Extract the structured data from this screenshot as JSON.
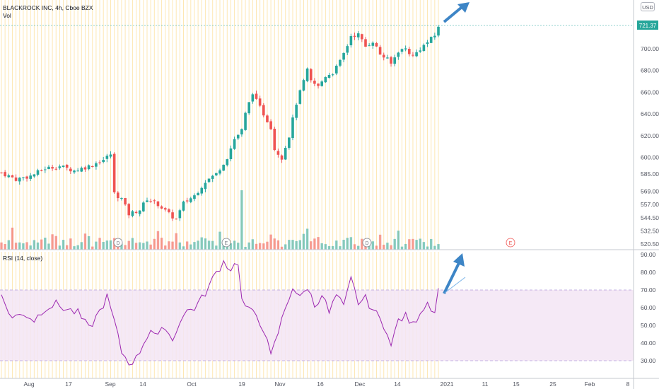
{
  "header": {
    "symbol": "BLACKROCK INC, 4h, Cboe BZX",
    "volume_label": "Vol",
    "currency": "USD",
    "last_price": "721.37"
  },
  "rsi_panel": {
    "label": "RSI (14, close)"
  },
  "colors": {
    "up": "#26a69a",
    "down": "#ef5350",
    "rsi_line": "#9c27b0",
    "rsi_band": "#f3e5f5",
    "arrow": "#3d85c6",
    "grid_vertical": "#fde7b3"
  },
  "chart_data": [
    {
      "type": "candlestick",
      "panel": "price",
      "yticks": [
        "700.00",
        "680.00",
        "660.00",
        "640.00",
        "620.00",
        "600.00",
        "585.00",
        "569.00",
        "557.00",
        "544.50",
        "532.50",
        "520.50"
      ],
      "x_ticks": [
        "Aug",
        "17",
        "Sep",
        "14",
        "Oct",
        "19",
        "Nov",
        "16",
        "Dec",
        "14",
        "2021",
        "11",
        "15",
        "25",
        "Feb",
        "8"
      ],
      "events": [
        "D",
        "E",
        "D",
        "E"
      ],
      "anchors": [
        [
          0,
          586
        ],
        [
          4,
          580
        ],
        [
          8,
          583
        ],
        [
          12,
          590
        ],
        [
          16,
          592
        ],
        [
          20,
          588
        ],
        [
          24,
          592
        ],
        [
          28,
          598
        ],
        [
          30,
          603
        ],
        [
          31,
          567
        ],
        [
          33,
          562
        ],
        [
          35,
          548
        ],
        [
          38,
          552
        ],
        [
          40,
          562
        ],
        [
          43,
          557
        ],
        [
          46,
          548
        ],
        [
          48,
          543
        ],
        [
          50,
          558
        ],
        [
          53,
          565
        ],
        [
          56,
          578
        ],
        [
          59,
          585
        ],
        [
          62,
          600
        ],
        [
          64,
          617
        ],
        [
          66,
          625
        ],
        [
          67,
          640
        ],
        [
          69,
          660
        ],
        [
          70,
          652
        ],
        [
          72,
          640
        ],
        [
          74,
          628
        ],
        [
          75,
          608
        ],
        [
          77,
          600
        ],
        [
          79,
          620
        ],
        [
          81,
          650
        ],
        [
          82,
          660
        ],
        [
          84,
          680
        ],
        [
          85,
          670
        ],
        [
          87,
          665
        ],
        [
          89,
          675
        ],
        [
          91,
          678
        ],
        [
          93,
          688
        ],
        [
          95,
          703
        ],
        [
          96,
          712
        ],
        [
          98,
          713
        ],
        [
          100,
          702
        ],
        [
          102,
          707
        ],
        [
          104,
          695
        ],
        [
          106,
          690
        ],
        [
          107,
          686
        ],
        [
          109,
          698
        ],
        [
          111,
          700
        ],
        [
          113,
          693
        ],
        [
          115,
          700
        ],
        [
          117,
          706
        ],
        [
          119,
          712
        ],
        [
          120,
          721
        ]
      ],
      "volume_panel": true,
      "last_value": 721.37
    },
    {
      "type": "line",
      "panel": "rsi",
      "series": [
        {
          "anchors": [
            [
              0,
              66
            ],
            [
              3,
              54
            ],
            [
              6,
              57
            ],
            [
              9,
              53
            ],
            [
              12,
              60
            ],
            [
              15,
              62
            ],
            [
              18,
              59
            ],
            [
              21,
              57
            ],
            [
              24,
              48
            ],
            [
              27,
              58
            ],
            [
              29,
              66
            ],
            [
              31,
              52
            ],
            [
              33,
              35
            ],
            [
              35,
              29
            ],
            [
              37,
              31
            ],
            [
              39,
              40
            ],
            [
              41,
              48
            ],
            [
              43,
              43
            ],
            [
              45,
              50
            ],
            [
              47,
              41
            ],
            [
              49,
              53
            ],
            [
              51,
              58
            ],
            [
              53,
              60
            ],
            [
              55,
              65
            ],
            [
              57,
              72
            ],
            [
              59,
              80
            ],
            [
              61,
              86
            ],
            [
              63,
              82
            ],
            [
              65,
              86
            ],
            [
              66,
              64
            ],
            [
              68,
              58
            ],
            [
              70,
              56
            ],
            [
              72,
              48
            ],
            [
              74,
              32
            ],
            [
              76,
              46
            ],
            [
              78,
              60
            ],
            [
              80,
              72
            ],
            [
              82,
              65
            ],
            [
              84,
              72
            ],
            [
              86,
              61
            ],
            [
              88,
              68
            ],
            [
              90,
              57
            ],
            [
              92,
              67
            ],
            [
              94,
              60
            ],
            [
              96,
              76
            ],
            [
              98,
              63
            ],
            [
              100,
              65
            ],
            [
              102,
              59
            ],
            [
              104,
              53
            ],
            [
              106,
              47
            ],
            [
              107,
              38
            ],
            [
              109,
              53
            ],
            [
              111,
              55
            ],
            [
              113,
              50
            ],
            [
              115,
              58
            ],
            [
              117,
              63
            ],
            [
              119,
              58
            ],
            [
              120,
              70
            ]
          ]
        }
      ],
      "yticks": [
        "90.00",
        "80.00",
        "70.00",
        "60.00",
        "50.00",
        "40.00",
        "30.00"
      ],
      "band": [
        30,
        70
      ]
    }
  ]
}
